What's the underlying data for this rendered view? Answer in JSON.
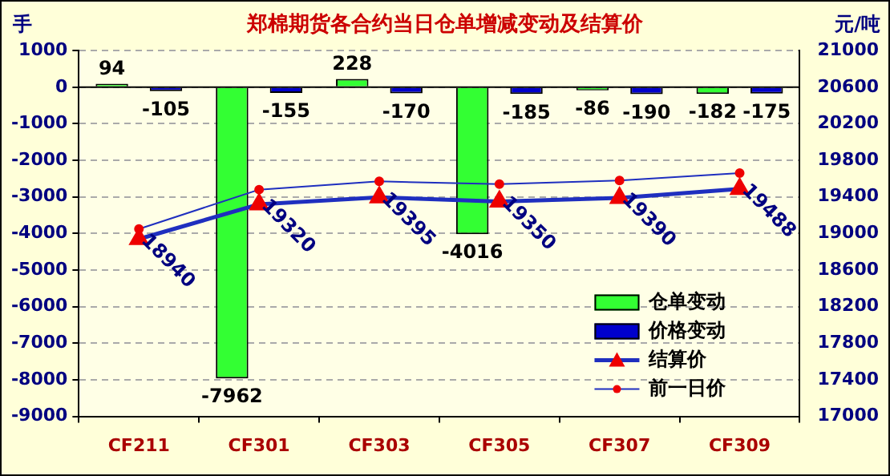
{
  "chart_data": {
    "type": "bar",
    "title": "郑棉期货各合约当日仓单增减变动及结算价",
    "ylabel": "手",
    "y2label": "元/吨",
    "categories": [
      "CF211",
      "CF301",
      "CF303",
      "CF305",
      "CF307",
      "CF309"
    ],
    "series": [
      {
        "name": "仓单变动",
        "color": "#33ff33",
        "values": [
          94,
          -7962,
          228,
          -4016,
          -86,
          -182
        ],
        "value_labels": [
          "94",
          "-7962",
          "228",
          "-4016",
          "-86",
          "-182"
        ]
      },
      {
        "name": "价格变动",
        "color": "#0000cc",
        "values": [
          -105,
          -155,
          -170,
          -185,
          -190,
          -175
        ],
        "value_labels": [
          "-105",
          "-155",
          "-170",
          "-185",
          "-190",
          "-175"
        ]
      },
      {
        "name": "结算价",
        "type": "line",
        "axis": "y2",
        "color": "#1f2fbf",
        "marker": "triangle",
        "values": [
          18940,
          19320,
          19395,
          19350,
          19390,
          19488
        ],
        "value_labels": [
          "18940",
          "19320",
          "19395",
          "19350",
          "19390",
          "19488"
        ]
      },
      {
        "name": "前一日价",
        "type": "line",
        "axis": "y2",
        "color": "#1f2fbf",
        "marker": "circle",
        "values": [
          19050,
          19480,
          19570,
          19540,
          19580,
          19660
        ]
      }
    ],
    "ylim": [
      -9000,
      1000
    ],
    "yticks": [
      -9000,
      -8000,
      -7000,
      -6000,
      -5000,
      -4000,
      -3000,
      -2000,
      -1000,
      0,
      1000
    ],
    "y2lim": [
      17000,
      21000
    ],
    "y2ticks": [
      17000,
      17400,
      17800,
      18200,
      18600,
      19000,
      19400,
      19800,
      20200,
      20600,
      21000
    ],
    "grid": "y",
    "legend": "bottom right"
  }
}
